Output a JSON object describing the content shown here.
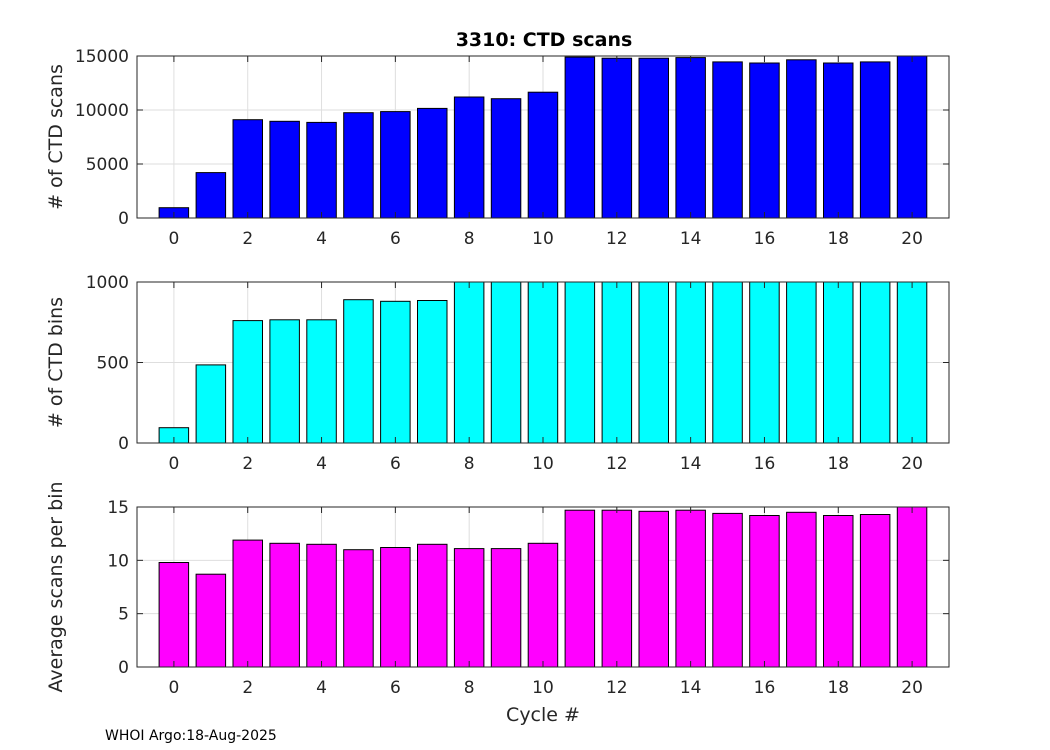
{
  "title": "3310: CTD scans",
  "footer": "WHOI Argo:18-Aug-2025",
  "chart_data": [
    {
      "type": "bar",
      "title": "3310: CTD scans",
      "xlabel": "",
      "ylabel": "# of CTD scans",
      "x": [
        0,
        1,
        2,
        3,
        4,
        5,
        6,
        7,
        8,
        9,
        10,
        11,
        12,
        13,
        14,
        15,
        16,
        17,
        18,
        19,
        20
      ],
      "values": [
        950,
        4200,
        9100,
        8950,
        8850,
        9750,
        9850,
        10150,
        11200,
        11050,
        11650,
        14900,
        14800,
        14800,
        14850,
        14450,
        14350,
        14650,
        14350,
        14450,
        15200
      ],
      "xlim": [
        -1,
        21
      ],
      "ylim": [
        0,
        15000
      ],
      "xticks": [
        0,
        2,
        4,
        6,
        8,
        10,
        12,
        14,
        16,
        18,
        20
      ],
      "yticks": [
        0,
        5000,
        10000,
        15000
      ],
      "color": "#0000ff",
      "grid": true
    },
    {
      "type": "bar",
      "title": "",
      "xlabel": "",
      "ylabel": "# of CTD bins",
      "x": [
        0,
        1,
        2,
        3,
        4,
        5,
        6,
        7,
        8,
        9,
        10,
        11,
        12,
        13,
        14,
        15,
        16,
        17,
        18,
        19,
        20
      ],
      "values": [
        95,
        485,
        760,
        765,
        765,
        890,
        880,
        885,
        1000,
        1000,
        1000,
        1000,
        1000,
        1000,
        1000,
        1000,
        1000,
        1000,
        1000,
        1000,
        1000
      ],
      "xlim": [
        -1,
        21
      ],
      "ylim": [
        0,
        1000
      ],
      "xticks": [
        0,
        2,
        4,
        6,
        8,
        10,
        12,
        14,
        16,
        18,
        20
      ],
      "yticks": [
        0,
        500,
        1000
      ],
      "color": "#00ffff",
      "grid": true
    },
    {
      "type": "bar",
      "title": "",
      "xlabel": "Cycle #",
      "ylabel": "Average scans per bin",
      "x": [
        0,
        1,
        2,
        3,
        4,
        5,
        6,
        7,
        8,
        9,
        10,
        11,
        12,
        13,
        14,
        15,
        16,
        17,
        18,
        19,
        20
      ],
      "values": [
        9.8,
        8.7,
        11.9,
        11.6,
        11.5,
        11.0,
        11.2,
        11.5,
        11.1,
        11.1,
        11.6,
        14.7,
        14.7,
        14.6,
        14.7,
        14.4,
        14.2,
        14.5,
        14.2,
        14.3,
        15.0
      ],
      "xlim": [
        -1,
        21
      ],
      "ylim": [
        0,
        15
      ],
      "xticks": [
        0,
        2,
        4,
        6,
        8,
        10,
        12,
        14,
        16,
        18,
        20
      ],
      "yticks": [
        0,
        5,
        10,
        15
      ],
      "color": "#ff00ff",
      "grid": true
    }
  ]
}
